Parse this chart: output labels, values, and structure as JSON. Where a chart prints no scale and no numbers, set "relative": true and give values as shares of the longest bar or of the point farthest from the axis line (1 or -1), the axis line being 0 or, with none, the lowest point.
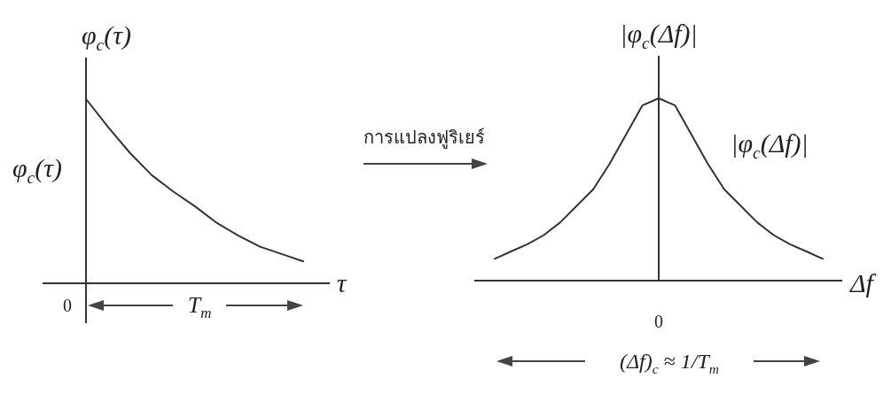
{
  "chart_data": [
    {
      "type": "line",
      "relative": true,
      "ylabel": "φ$_{c}$(τ)",
      "xlabel": "τ",
      "categories": [
        null,
        null,
        null,
        null,
        null,
        null,
        null,
        null,
        null,
        null,
        null
      ],
      "series": [
        {
          "name": "φ$_{c}$(τ)",
          "color": "#333333",
          "values": [
            1,
            0.85,
            0.71,
            0.59,
            0.5,
            0.42,
            0.33,
            0.26,
            0.2,
            0.16,
            0.12
          ]
        }
      ],
      "annotations": [
        "0",
        "T$_{m}$",
        "การแปลงฟูริเยร์"
      ]
    },
    {
      "type": "line",
      "relative": true,
      "ylabel": "|φ$_{c}$(Δf)|",
      "xlabel": "Δf",
      "categories": [
        null,
        null,
        null,
        null,
        null,
        null,
        null,
        null,
        null,
        null,
        null,
        null,
        null,
        null,
        null,
        null,
        null,
        null,
        null,
        null,
        null
      ],
      "series": [
        {
          "name": "|φ$_{c}$(Δf)|",
          "color": "#333333",
          "values": [
            0.12,
            0.16,
            0.2,
            0.25,
            0.32,
            0.41,
            0.5,
            0.64,
            0.8,
            0.96,
            1,
            0.96,
            0.8,
            0.64,
            0.5,
            0.41,
            0.32,
            0.25,
            0.2,
            0.16,
            0.12
          ]
        }
      ],
      "annotations": [
        "0",
        "(Δf)$_{c}$ ≈ 1/T$_{m}$"
      ]
    }
  ]
}
